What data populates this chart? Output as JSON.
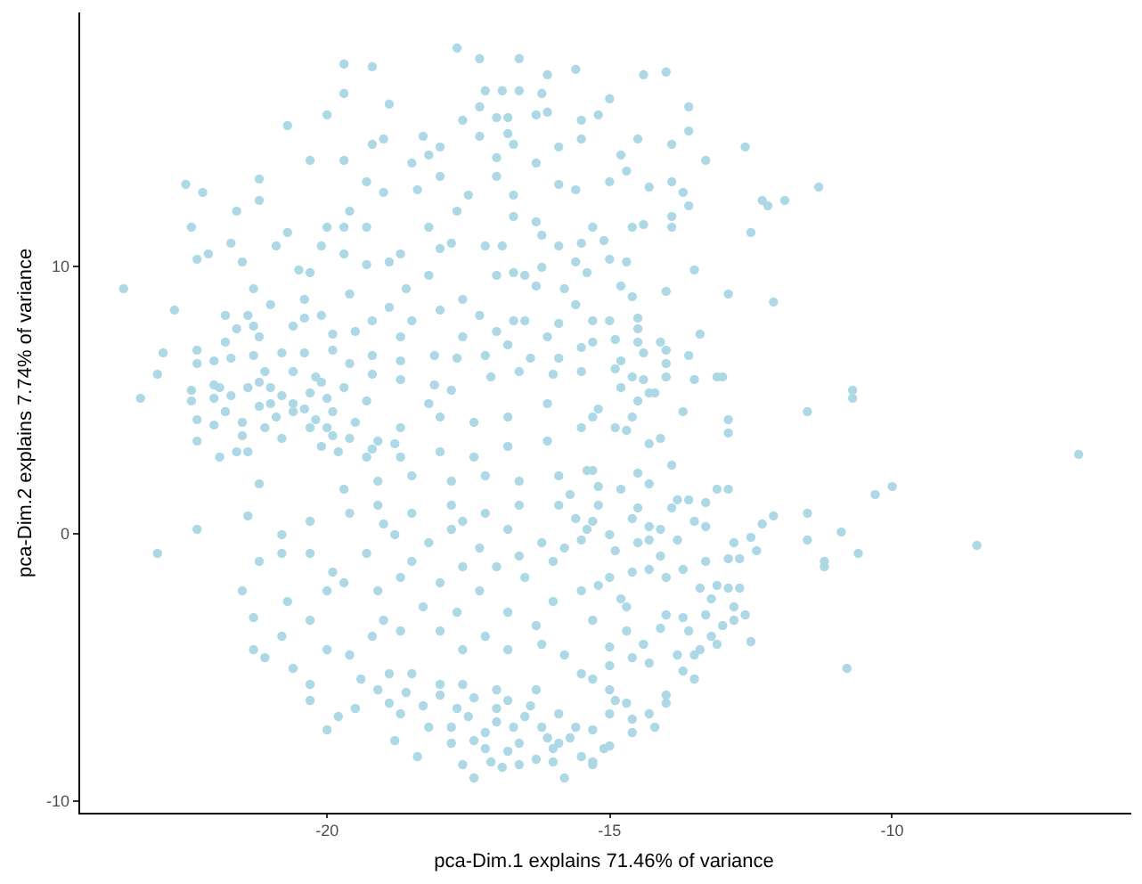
{
  "chart_data": {
    "type": "scatter",
    "xlabel": "pca-Dim.1 explains 71.46% of variance",
    "ylabel": "pca-Dim.2 explains 7.74% of variance",
    "color": "#add8e6",
    "marker": "circle",
    "grid": false,
    "legend": false,
    "xlim": [
      -24.4,
      -5.8
    ],
    "ylim": [
      -10.4,
      19.5
    ],
    "xticks": [
      -20,
      -15,
      -10
    ],
    "yticks": [
      -10,
      0,
      10
    ],
    "x": [
      -22.5,
      -22.2,
      -21.2,
      -21.2,
      -21.6,
      -22.4,
      -21.7,
      -22.3,
      -22.1,
      -21.5,
      -23.6,
      -22.7,
      -20.7,
      -20.0,
      -19.7,
      -19.2,
      -19.7,
      -18.9,
      -19.7,
      -20.3,
      -19.2,
      -19.0,
      -19.3,
      -19.0,
      -19.6,
      -18.3,
      -18.5,
      -18.2,
      -18.0,
      -18.4,
      -18.0,
      -17.7,
      -17.3,
      -16.6,
      -16.1,
      -15.6,
      -17.2,
      -16.9,
      -16.6,
      -16.2,
      -17.6,
      -17.3,
      -17.0,
      -16.8,
      -16.3,
      -16.1,
      -17.3,
      -16.8,
      -16.7,
      -16.3,
      -17.0,
      -17.0,
      -15.5,
      -15.5,
      -15.2,
      -15.9,
      -17.5,
      -17.7,
      -16.7,
      -15.9,
      -15.6,
      -18.2,
      -17.8,
      -18.0,
      -17.2,
      -16.9,
      -16.7,
      -16.3,
      -16.2,
      -15.9,
      -15.5,
      -15.3,
      -20.0,
      -20.1,
      -19.7,
      -19.3,
      -19.7,
      -19.3,
      -18.9,
      -18.7,
      -20.7,
      -20.9,
      -20.5,
      -20.3,
      -19.6,
      -18.6,
      -18.2,
      -17.6,
      -17.3,
      -17.0,
      -16.7,
      -16.5,
      -16.2,
      -15.6,
      -15.4,
      -15.8,
      -16.3,
      -16.7,
      -17.0,
      -21.3,
      -21.0,
      -21.4,
      -21.3,
      -21.2,
      -20.6,
      -20.4,
      -20.4,
      -20.1,
      -19.9,
      -19.5,
      -19.2,
      -18.9,
      -18.7,
      -18.5,
      -18.0,
      -17.6,
      -16.5,
      -16.1,
      -15.9,
      -15.6,
      -15.3,
      -21.8,
      -21.6,
      -21.8,
      -22.3,
      -22.9,
      -23.0,
      -23.3,
      -22.3,
      -22.0,
      -21.7,
      -21.3,
      -21.1,
      -20.8,
      -20.4,
      -19.9,
      -19.6,
      -19.2,
      -18.7,
      -18.1,
      -17.7,
      -17.2,
      -16.8,
      -16.4,
      -15.9,
      -15.5,
      -15.3,
      -15.5,
      -16.0,
      -16.6,
      -17.1,
      -17.8,
      -18.1,
      -18.7,
      -19.2,
      -19.7,
      -20.2,
      -20.6,
      -21.0,
      -21.4,
      -21.9,
      -22.4,
      -22.4,
      -22.0,
      -21.7,
      -20.1,
      -20.3,
      -20.0,
      -21.2,
      -21.0,
      -20.6,
      -14.4,
      -14.0,
      -15.0,
      -13.6,
      -13.6,
      -14.5,
      -13.9,
      -13.3,
      -12.6,
      -14.8,
      -14.7,
      -15.0,
      -14.3,
      -13.9,
      -13.7,
      -13.6,
      -11.3,
      -12.3,
      -12.2,
      -11.9,
      -13.9,
      -13.9,
      -14.6,
      -14.4,
      -12.5,
      -15.1,
      -15.0,
      -14.7,
      -13.5,
      -14.8,
      -14.0,
      -14.6,
      -12.9,
      -12.1,
      -14.5,
      -15.0,
      -14.5,
      -13.4,
      -14.1,
      -14.0,
      -14.5,
      -14.9,
      -14.4,
      -13.6,
      -14.0,
      -14.8,
      -14.9,
      -14.6,
      -14.0,
      -13.5,
      -13.1,
      -13.0,
      -14.4,
      -14.8,
      -14.2,
      -14.5,
      -10.7,
      -10.7,
      -11.5,
      -13.7,
      -22.3,
      -23.0,
      -22.3,
      -22.3,
      -21.9,
      -21.6,
      -21.4,
      -22.0,
      -21.5,
      -21.1,
      -20.9,
      -20.6,
      -20.2,
      -19.9,
      -19.8,
      -20.1,
      -20.3,
      -19.5,
      -19.3,
      -19.1,
      -20.8,
      -21.2,
      -21.4,
      -21.2,
      -21.5,
      -21.3,
      -21.3,
      -21.1,
      -20.8,
      -20.7,
      -20.8,
      -20.8,
      -20.3,
      -20.3,
      -20.0,
      -19.9,
      -19.7,
      -20.3,
      -20.6,
      -20.3,
      -20.3,
      -20.0,
      -19.8,
      -20.0,
      -19.6,
      -19.4,
      -19.5,
      -19.1,
      -18.8,
      -18.4,
      -18.7,
      -18.2,
      -17.8,
      -17.6,
      -17.4,
      -17.1,
      -16.8,
      -16.6,
      -17.2,
      -17.7,
      -18.0,
      -18.5,
      -18.9,
      -17.4,
      -17.0,
      -16.7,
      -16.1,
      -15.8,
      -16.0,
      -15.5,
      -15.3,
      -15.6,
      -16.3,
      -15.9,
      -15.5,
      -15.8,
      -16.2,
      -16.8,
      -17.2,
      -17.6,
      -18.0,
      -18.7,
      -19.0,
      -19.2,
      -18.3,
      -17.7,
      -17.3,
      -16.8,
      -16.3,
      -16.0,
      -15.5,
      -16.5,
      -17.0,
      -17.6,
      -18.0,
      -18.7,
      -19.1,
      -19.3,
      -18.8,
      -18.2,
      -17.8,
      -17.3,
      -16.8,
      -16.2,
      -15.8,
      -15.6,
      -15.4,
      -15.2,
      -15.9,
      -16.6,
      -17.2,
      -17.8,
      -18.5,
      -19.1,
      -19.6,
      -19.7,
      -19.1,
      -18.5,
      -17.8,
      -17.2,
      -16.6,
      -15.9,
      -15.4,
      -18.7,
      -18.0,
      -17.4,
      -16.8,
      -16.1,
      -15.5,
      -18.7,
      -18.0,
      -17.4,
      -16.8,
      -16.1,
      -18.2,
      -19.3,
      -17.5,
      -17.0,
      -16.5,
      -16.2,
      -15.9,
      -16.6,
      -17.2,
      -17.8,
      -18.3,
      -18.0,
      -17.0,
      -16.8,
      -16.0,
      -15.7,
      -16.3,
      -16.9,
      -17.4,
      -18.6,
      -18.9,
      -15.3,
      -15.1,
      -17.6,
      -16.4,
      -21.8,
      -21.2,
      -20.8,
      -20.4,
      -20.0,
      -19.6,
      -19.2,
      -18.8,
      -21.5,
      -22.0,
      -19.9,
      -15.7,
      -15.3,
      -15.0,
      -14.6,
      -14.3,
      -14.9,
      -15.5,
      -14.5,
      -15.2,
      -16.0,
      -16.6,
      -17.6,
      -18.5,
      -19.0,
      -6.7,
      -10.0,
      -10.3,
      -8.5,
      -10.8,
      -10.9,
      -10.6,
      -11.2,
      -11.2,
      -11.5,
      -11.5,
      -12.1,
      -12.3,
      -12.5,
      -12.9,
      -12.9,
      -13.9,
      -14.3,
      -14.1,
      -14.6,
      -14.7,
      -15.2,
      -14.9,
      -13.1,
      -12.9,
      -13.3,
      -13.6,
      -13.9,
      -13.5,
      -13.3,
      -12.8,
      -12.5,
      -12.4,
      -12.9,
      -12.7,
      -13.8,
      -13.3,
      -13.7,
      -14.0,
      -14.3,
      -13.1,
      -12.9,
      -12.7,
      -12.8,
      -12.6,
      -12.8,
      -13.0,
      -13.3,
      -13.2,
      -13.4,
      -13.7,
      -14.0,
      -14.1,
      -13.6,
      -13.2,
      -13.1,
      -13.4,
      -13.5,
      -13.8,
      -13.7,
      -13.5,
      -14.0,
      -14.0,
      -14.3,
      -14.2,
      -14.6,
      -14.6,
      -14.7,
      -14.9,
      -15.0,
      -15.0,
      -15.0,
      -15.3,
      -14.3,
      -14.6,
      -15.0,
      -15.3,
      -15.0,
      -14.7,
      -14.4,
      -14.7,
      -15.3,
      -14.8,
      -15.2,
      -15.0,
      -14.6,
      -14.3,
      -14.1,
      -14.1,
      -14.3,
      -14.5,
      -14.8,
      -13.8,
      -15.3,
      -14.5,
      -14.3,
      -15.3
    ],
    "values": [
      13.1,
      12.8,
      13.3,
      12.5,
      12.1,
      11.5,
      10.9,
      10.3,
      10.5,
      10.2,
      9.2,
      8.4,
      15.3,
      15.7,
      17.6,
      17.5,
      16.5,
      16.1,
      14.0,
      14.0,
      14.6,
      14.8,
      13.2,
      12.8,
      12.1,
      14.9,
      13.9,
      14.2,
      14.5,
      12.9,
      13.4,
      18.2,
      17.8,
      17.8,
      17.2,
      17.4,
      16.6,
      16.6,
      16.6,
      16.5,
      15.5,
      16.0,
      15.6,
      15.6,
      15.7,
      15.8,
      14.9,
      15.0,
      14.6,
      13.9,
      14.1,
      13.4,
      15.5,
      14.8,
      15.7,
      14.5,
      12.7,
      12.1,
      12.7,
      13.1,
      12.9,
      11.5,
      10.9,
      10.7,
      10.8,
      10.8,
      11.9,
      11.7,
      11.2,
      10.8,
      10.9,
      11.5,
      11.5,
      10.8,
      11.5,
      11.5,
      10.5,
      10.1,
      10.2,
      10.5,
      11.3,
      10.8,
      9.9,
      9.8,
      9.0,
      9.2,
      9.7,
      8.8,
      8.2,
      9.7,
      9.8,
      9.7,
      10.0,
      10.2,
      9.8,
      9.2,
      9.3,
      8.0,
      7.6,
      9.2,
      8.6,
      8.2,
      7.8,
      7.4,
      7.8,
      8.1,
      8.8,
      8.2,
      7.5,
      7.6,
      8.0,
      8.5,
      7.4,
      8.0,
      8.4,
      7.4,
      8.0,
      7.4,
      7.9,
      8.6,
      8.0,
      8.2,
      7.7,
      7.2,
      6.9,
      6.8,
      6.0,
      5.1,
      6.4,
      6.5,
      6.6,
      6.7,
      6.1,
      6.8,
      6.8,
      6.9,
      6.4,
      6.7,
      6.5,
      6.7,
      6.6,
      6.7,
      7.1,
      6.6,
      6.6,
      7.0,
      7.2,
      6.1,
      6.0,
      6.1,
      5.9,
      5.4,
      5.6,
      5.8,
      6.0,
      5.5,
      5.9,
      6.1,
      5.5,
      5.5,
      5.5,
      5.4,
      5.0,
      5.1,
      5.2,
      5.7,
      5.3,
      5.1,
      5.7,
      4.9,
      4.9,
      17.2,
      17.3,
      16.3,
      16.0,
      15.1,
      14.8,
      14.6,
      14.0,
      14.5,
      14.2,
      13.6,
      13.2,
      13.0,
      13.2,
      12.8,
      12.3,
      13.0,
      12.5,
      12.3,
      12.5,
      11.9,
      11.5,
      11.5,
      11.6,
      11.3,
      11.0,
      10.3,
      10.2,
      9.9,
      9.3,
      9.1,
      8.9,
      9.0,
      8.7,
      8.1,
      8.0,
      7.7,
      7.5,
      7.2,
      6.9,
      7.2,
      7.3,
      6.8,
      6.7,
      6.4,
      6.5,
      6.2,
      5.9,
      5.9,
      5.8,
      5.9,
      5.9,
      5.8,
      5.5,
      5.3,
      5.0,
      5.4,
      5.1,
      4.6,
      4.6,
      0.2,
      -0.7,
      3.5,
      4.3,
      2.9,
      3.1,
      3.1,
      4.1,
      4.2,
      4.0,
      4.4,
      4.6,
      4.3,
      3.7,
      3.1,
      3.3,
      4.0,
      4.2,
      2.9,
      3.5,
      3.6,
      1.9,
      0.7,
      -1.0,
      -2.1,
      -3.1,
      -4.3,
      -4.6,
      -3.8,
      -2.5,
      0.0,
      -0.7,
      -0.7,
      0.5,
      -2.1,
      -1.4,
      -1.8,
      -3.2,
      -5.0,
      -5.6,
      -6.2,
      -7.3,
      -6.8,
      -4.3,
      -4.5,
      -5.4,
      -6.5,
      -5.8,
      -7.7,
      -8.3,
      -6.7,
      -7.2,
      -7.8,
      -8.6,
      -9.1,
      -8.5,
      -8.1,
      -8.6,
      -7.4,
      -6.5,
      -5.6,
      -5.2,
      -5.2,
      -6.1,
      -6.5,
      -7.2,
      -7.6,
      -9.1,
      -8.5,
      -8.3,
      -8.5,
      -7.2,
      -5.8,
      -6.7,
      -5.2,
      -4.5,
      -4.1,
      -4.3,
      -3.8,
      -4.3,
      -3.6,
      -3.6,
      -3.2,
      -3.8,
      -2.7,
      -2.9,
      -2.1,
      -2.9,
      -3.4,
      -2.5,
      -2.1,
      -1.6,
      -1.2,
      -1.2,
      -1.8,
      -1.6,
      -2.1,
      -0.7,
      0.0,
      -0.3,
      0.2,
      -0.5,
      0.2,
      -0.3,
      -0.5,
      0.6,
      0.2,
      1.1,
      1.1,
      1.1,
      0.8,
      1.1,
      0.8,
      1.1,
      0.8,
      1.7,
      2.0,
      2.2,
      2.0,
      2.2,
      2.0,
      2.2,
      2.4,
      2.9,
      3.1,
      2.9,
      3.3,
      3.5,
      4.0,
      4.0,
      4.4,
      4.2,
      4.4,
      4.9,
      4.9,
      5.0,
      -6.8,
      -7.0,
      -6.8,
      -7.2,
      -7.8,
      -7.8,
      -8.0,
      -7.2,
      -6.4,
      -6.0,
      -5.8,
      -6.2,
      -8.0,
      -7.6,
      -8.4,
      -8.7,
      -7.7,
      -5.9,
      -6.3,
      -7.3,
      -8.0,
      -5.6,
      -6.4,
      4.6,
      4.8,
      5.2,
      4.7,
      4.0,
      3.6,
      3.2,
      3.4,
      3.7,
      5.6,
      4.6,
      1.5,
      0.5,
      0.0,
      0.6,
      0.3,
      -0.6,
      -0.2,
      -0.3,
      1.8,
      -1.0,
      -0.8,
      0.5,
      -1.0,
      0.4,
      3.0,
      1.8,
      1.5,
      -0.4,
      -5.0,
      0.1,
      -0.7,
      -1.0,
      -1.2,
      0.8,
      -0.2,
      0.7,
      0.4,
      -4.0,
      4.3,
      3.8,
      2.6,
      3.4,
      3.6,
      4.4,
      3.9,
      4.7,
      4.0,
      1.7,
      1.7,
      1.2,
      1.3,
      1.0,
      0.5,
      0.3,
      -0.3,
      -0.1,
      -0.6,
      -0.9,
      -0.9,
      -0.2,
      -1.0,
      -1.3,
      -1.6,
      -1.3,
      -1.9,
      -2.0,
      -2.0,
      -2.7,
      -3.0,
      -3.2,
      -3.4,
      -3.0,
      -2.4,
      -2.0,
      -3.1,
      -3.0,
      -3.5,
      -3.6,
      -3.8,
      -4.1,
      -4.3,
      -4.5,
      -4.5,
      -5.1,
      -5.4,
      -6.0,
      -6.3,
      -6.7,
      -7.2,
      -7.4,
      -6.9,
      -6.3,
      -6.2,
      -5.8,
      -6.7,
      -7.9,
      -8.6,
      -4.8,
      -4.6,
      -4.9,
      -5.4,
      -4.2,
      -3.6,
      -4.1,
      -2.7,
      -3.2,
      -2.4,
      -1.9,
      -1.6,
      -1.4,
      -0.2,
      0.2,
      -0.8,
      1.9,
      2.3,
      1.7,
      1.3,
      2.4,
      1.0,
      5.3,
      4.4
    ]
  }
}
